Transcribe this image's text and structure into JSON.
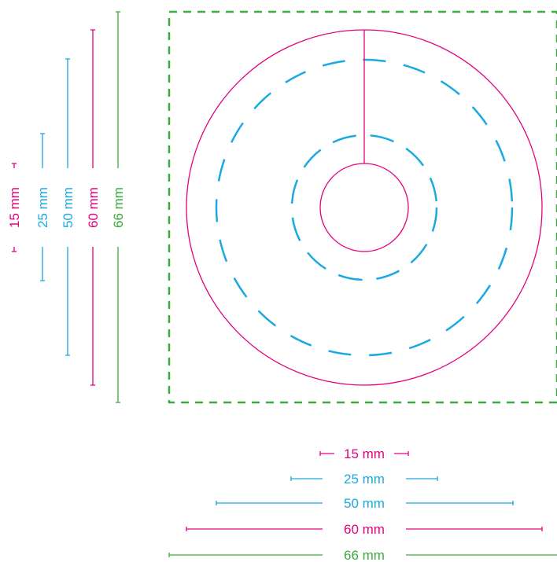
{
  "colors": {
    "magenta": "#e5007e",
    "cyan": "#1aa9e0",
    "green": "#3aab3c",
    "background": "#ffffff"
  },
  "dimensions": [
    {
      "id": "d15",
      "label": "15 mm",
      "value_mm": 15,
      "color": "#e5007e"
    },
    {
      "id": "d25",
      "label": "25 mm",
      "value_mm": 25,
      "color": "#1aa9e0"
    },
    {
      "id": "d50",
      "label": "50 mm",
      "value_mm": 50,
      "color": "#1aa9e0"
    },
    {
      "id": "d60",
      "label": "60 mm",
      "value_mm": 60,
      "color": "#e5007e"
    },
    {
      "id": "d66",
      "label": "66 mm",
      "value_mm": 66,
      "color": "#3aab3c"
    }
  ],
  "shapes": {
    "outer_square": {
      "size_mm": 66,
      "style": "dashed",
      "color": "#3aab3c"
    },
    "outer_circle": {
      "diameter_mm": 60,
      "style": "solid",
      "color": "#e5007e"
    },
    "guide_circle_large": {
      "diameter_mm": 50,
      "style": "dashed",
      "color": "#1aa9e0"
    },
    "guide_circle_small": {
      "diameter_mm": 25,
      "style": "dashed",
      "color": "#1aa9e0"
    },
    "center_hole": {
      "diameter_mm": 15,
      "style": "solid",
      "color": "#e5007e"
    },
    "slit": {
      "style": "solid",
      "color": "#e5007e"
    }
  }
}
